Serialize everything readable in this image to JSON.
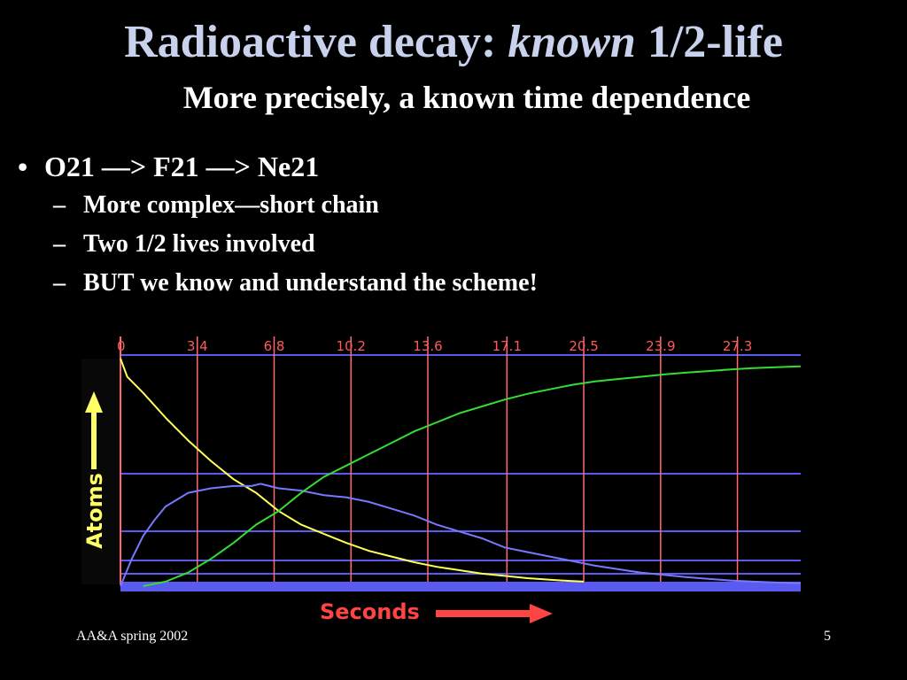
{
  "slide": {
    "title_part1": "Radioactive decay: ",
    "title_em": "known",
    "title_part2": " 1/2-life",
    "subtitle": "More precisely, a known time dependence",
    "bullets": [
      {
        "text": "O21 —>  F21 —> Ne21",
        "sub": [
          "More complex—short chain",
          "Two 1/2 lives involved",
          "BUT we know and understand the scheme!"
        ]
      }
    ],
    "footer_left": "AA&A spring 2002",
    "page_number": "5"
  },
  "colors": {
    "background": "#000000",
    "title": "#c9d2ec",
    "grid_vertical": "#ff6a6a",
    "grid_horizontal": "#5a5af0",
    "tick_labels": "#ff5a5a",
    "axis_labels": "#ffff66",
    "o21": "#ffff55",
    "f21": "#7878ff",
    "ne21": "#33dd33",
    "arrow_red": "#ff4444"
  },
  "chart_data": {
    "type": "line",
    "xlabel": "Seconds",
    "ylabel": "Atoms",
    "x_ticks": [
      "0",
      "3.4",
      "6.8",
      "10.2",
      "13.6",
      "17.1",
      "20.5",
      "23.9",
      "27.3"
    ],
    "xlim": [
      0,
      30.1
    ],
    "ylim": [
      0,
      1
    ],
    "grid": true,
    "series": [
      {
        "key": "o21",
        "x": [
          0,
          0.3,
          1,
          2,
          3,
          4,
          5,
          6,
          7,
          8,
          9,
          10,
          11,
          12,
          13,
          14,
          15,
          16,
          17,
          18,
          19,
          20,
          20.5
        ],
        "y": [
          1,
          0.92,
          0.85,
          0.74,
          0.64,
          0.55,
          0.47,
          0.41,
          0.33,
          0.27,
          0.23,
          0.19,
          0.155,
          0.13,
          0.105,
          0.085,
          0.07,
          0.055,
          0.045,
          0.035,
          0.028,
          0.022,
          0.02
        ]
      },
      {
        "key": "f21",
        "x": [
          0,
          0.5,
          1,
          1.5,
          2,
          3,
          4,
          5,
          5.8,
          6.2,
          7,
          8,
          9,
          10,
          11,
          12,
          13,
          14,
          15,
          16,
          17,
          18,
          19,
          20,
          21,
          22,
          23,
          24,
          25,
          26,
          27,
          28,
          29,
          30.1
        ],
        "y": [
          0,
          0.12,
          0.22,
          0.29,
          0.35,
          0.41,
          0.43,
          0.44,
          0.44,
          0.45,
          0.43,
          0.42,
          0.4,
          0.39,
          0.37,
          0.34,
          0.31,
          0.27,
          0.24,
          0.21,
          0.17,
          0.15,
          0.13,
          0.11,
          0.09,
          0.075,
          0.06,
          0.05,
          0.04,
          0.032,
          0.025,
          0.02,
          0.016,
          0.013
        ]
      },
      {
        "key": "ne21",
        "x": [
          1,
          2,
          3,
          4,
          5,
          6,
          7,
          8,
          9,
          10,
          11,
          12,
          13,
          14,
          15,
          16,
          17,
          18,
          19,
          20,
          21,
          22,
          23,
          24,
          25,
          26,
          27,
          28,
          29,
          30.1
        ],
        "y": [
          0,
          0.02,
          0.06,
          0.12,
          0.19,
          0.27,
          0.33,
          0.41,
          0.48,
          0.53,
          0.58,
          0.63,
          0.68,
          0.72,
          0.76,
          0.79,
          0.82,
          0.845,
          0.865,
          0.885,
          0.9,
          0.91,
          0.92,
          0.93,
          0.938,
          0.945,
          0.952,
          0.958,
          0.962,
          0.966
        ]
      }
    ]
  }
}
